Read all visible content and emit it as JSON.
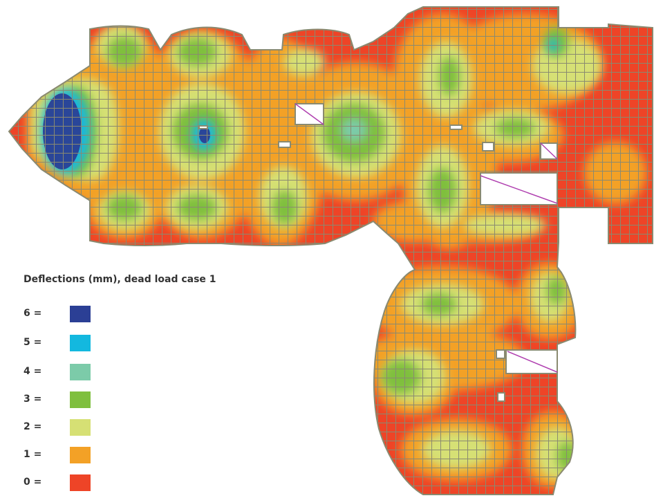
{
  "legend": {
    "title": "Deflections (mm), dead load case 1",
    "items": [
      {
        "value": "6",
        "label": "6 =",
        "color": "#2b3f95"
      },
      {
        "value": "5",
        "label": "5 =",
        "color": "#13b8df"
      },
      {
        "value": "4",
        "label": "4 =",
        "color": "#7ccba9"
      },
      {
        "value": "3",
        "label": "3 =",
        "color": "#7fbf3e"
      },
      {
        "value": "2",
        "label": "2 =",
        "color": "#d6e074"
      },
      {
        "value": "1",
        "label": "1 =",
        "color": "#f3a126"
      },
      {
        "value": "0",
        "label": "0 =",
        "color": "#ee4427"
      }
    ]
  },
  "mesh_color": "#8a8a70",
  "support_line_color": "#b040b0"
}
